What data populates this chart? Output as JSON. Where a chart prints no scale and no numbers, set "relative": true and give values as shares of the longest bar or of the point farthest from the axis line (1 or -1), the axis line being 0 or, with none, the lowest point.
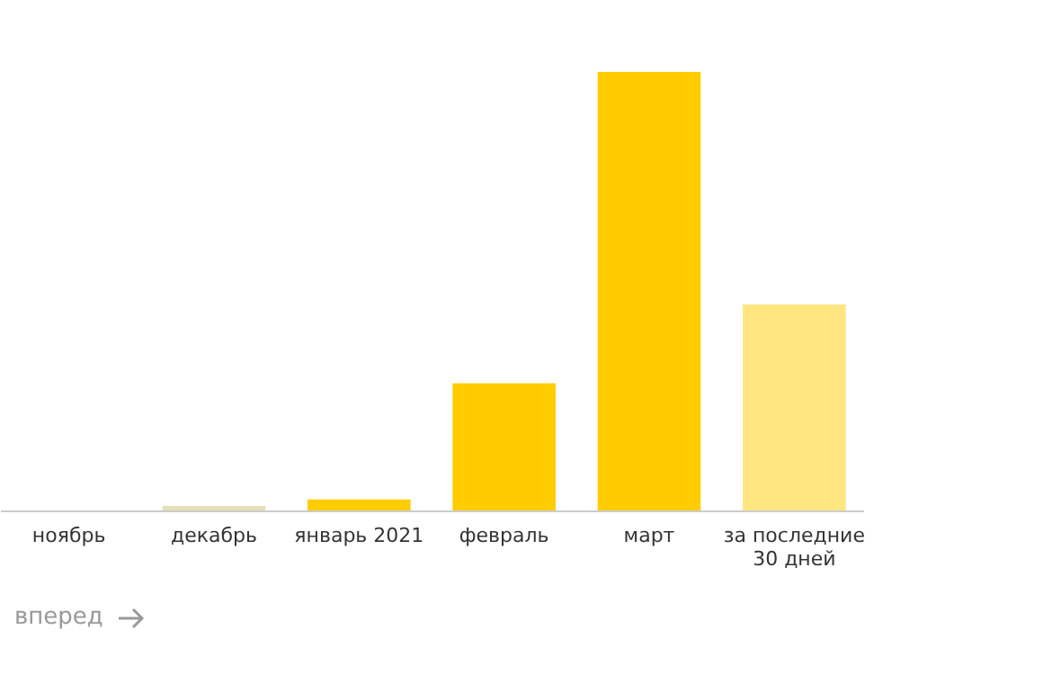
{
  "chart_data": {
    "type": "bar",
    "relative": true,
    "categories": [
      "ноябрь",
      "декабрь",
      "январь 2021",
      "февраль",
      "март",
      "за последние 30 дней"
    ],
    "values": [
      0,
      0.01,
      0.025,
      0.29,
      1,
      0.47
    ],
    "colors": [
      "#ffcc00",
      "#e6dfb8",
      "#ffcc00",
      "#ffcc00",
      "#ffcc00",
      "#ffe680"
    ],
    "annotations": [
      "вперед"
    ]
  }
}
